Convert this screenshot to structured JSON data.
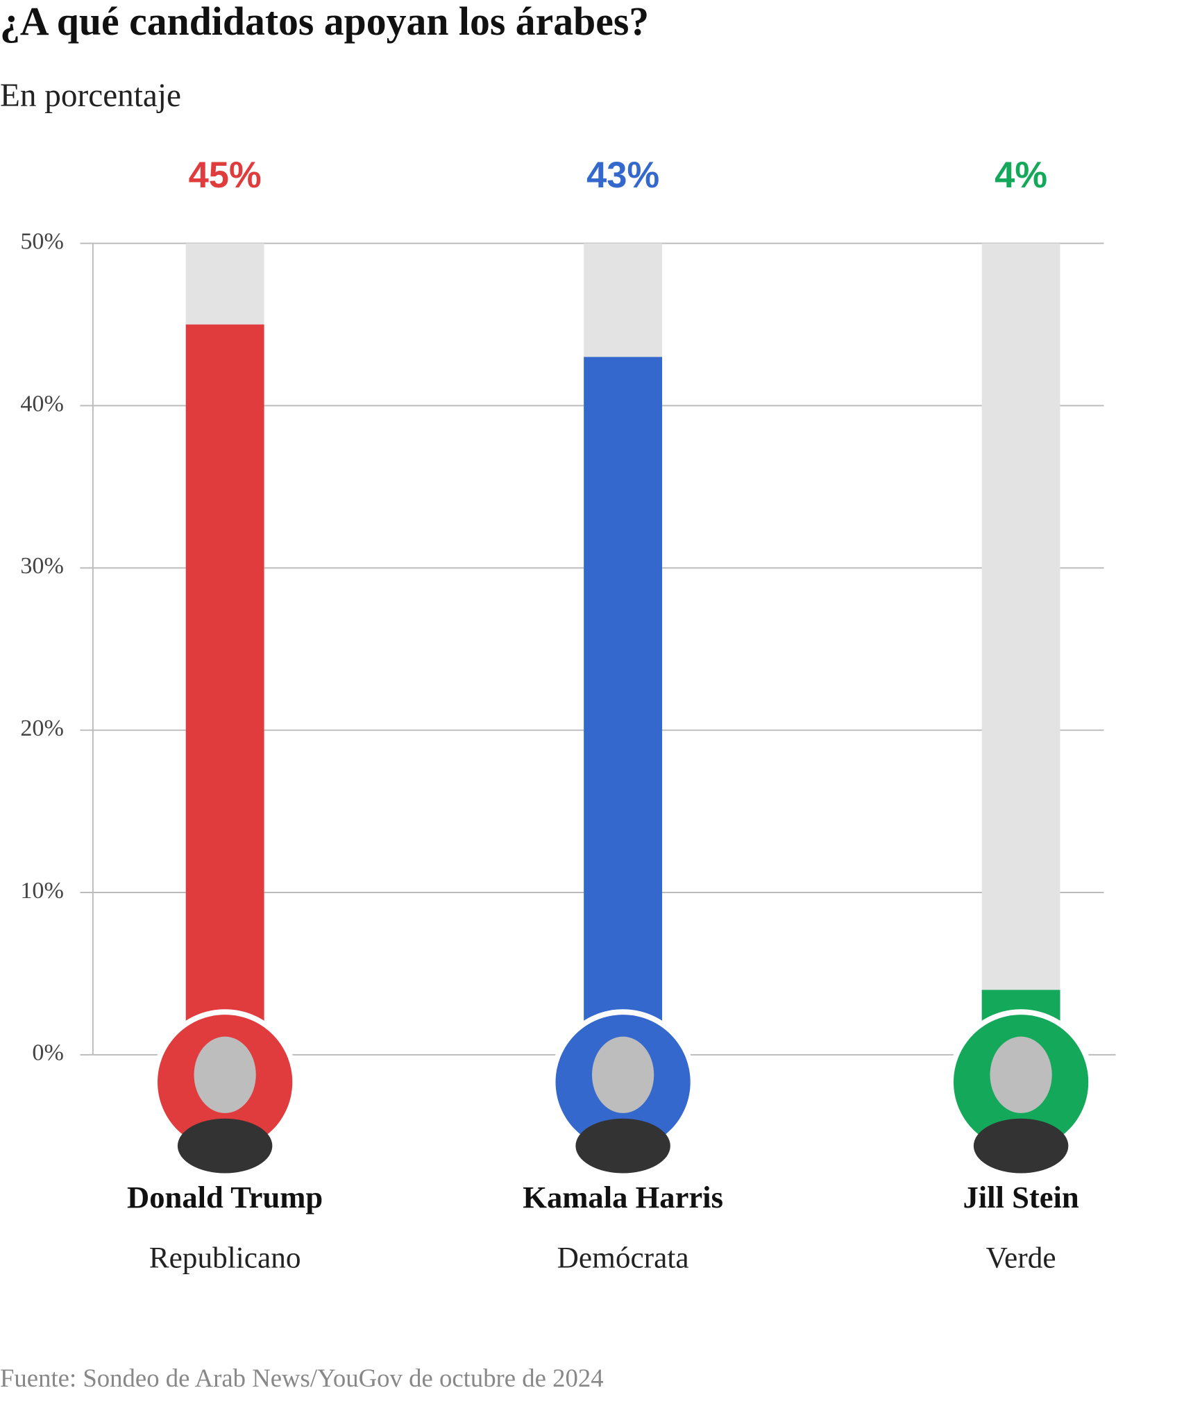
{
  "chart_data": {
    "type": "bar",
    "title": "¿A qué candidatos apoyan los árabes?",
    "subtitle": "En porcentaje",
    "categories": [
      "Donald Trump",
      "Kamala Harris",
      "Jill Stein"
    ],
    "parties": [
      "Republicano",
      "Demócrata",
      "Verde"
    ],
    "values": [
      45,
      43,
      4
    ],
    "value_labels": [
      "45%",
      "43%",
      "4%"
    ],
    "colors": [
      "#e03c3e",
      "#3468cc",
      "#14a85a"
    ],
    "ylim": [
      0,
      50
    ],
    "yticks": [
      {
        "value": 0,
        "label": "0%"
      },
      {
        "value": 10,
        "label": "10%"
      },
      {
        "value": 20,
        "label": "20%"
      },
      {
        "value": 30,
        "label": "30%"
      },
      {
        "value": 40,
        "label": "40%"
      },
      {
        "value": 50,
        "label": "50%"
      }
    ],
    "grid": true,
    "source": "Fuente: Sondeo de Arab News/YouGov de octubre de 2024"
  }
}
